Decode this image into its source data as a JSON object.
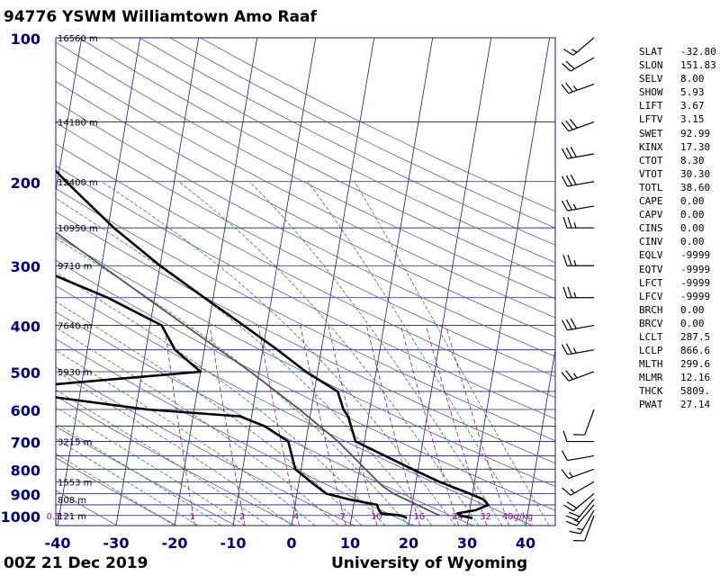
{
  "header": {
    "title": "94776 YSWM Williamtown Amo Raaf"
  },
  "footer": {
    "date": "00Z 21 Dec 2019",
    "source": "University of Wyoming"
  },
  "colors": {
    "grid": "#1a1a7a",
    "dry_adiabat": "#5a5aaf",
    "moist_adiabat": "#2e8b2e",
    "mixing_ratio": "#8b1a8b",
    "profile": "#000000",
    "parcel": "#555555",
    "axis_text": "#00007f"
  },
  "indices": [
    {
      "key": "SLAT",
      "value": "-32.80"
    },
    {
      "key": "SLON",
      "value": "151.83"
    },
    {
      "key": "SELV",
      "value": "8.00"
    },
    {
      "key": "SHOW",
      "value": "5.93"
    },
    {
      "key": "LIFT",
      "value": "3.67"
    },
    {
      "key": "LFTV",
      "value": "3.15"
    },
    {
      "key": "SWET",
      "value": "92.99"
    },
    {
      "key": "KINX",
      "value": "17.30"
    },
    {
      "key": "CTOT",
      "value": "8.30"
    },
    {
      "key": "VTOT",
      "value": "30.30"
    },
    {
      "key": "TOTL",
      "value": "38.60"
    },
    {
      "key": "CAPE",
      "value": "0.00"
    },
    {
      "key": "CAPV",
      "value": "0.00"
    },
    {
      "key": "CINS",
      "value": "0.00"
    },
    {
      "key": "CINV",
      "value": "0.00"
    },
    {
      "key": "EQLV",
      "value": "-9999"
    },
    {
      "key": "EQTV",
      "value": "-9999"
    },
    {
      "key": "LFCT",
      "value": "-9999"
    },
    {
      "key": "LFCV",
      "value": "-9999"
    },
    {
      "key": "BRCH",
      "value": "0.00"
    },
    {
      "key": "BRCV",
      "value": "0.00"
    },
    {
      "key": "LCLT",
      "value": "287.5"
    },
    {
      "key": "LCLP",
      "value": "866.6"
    },
    {
      "key": "MLTH",
      "value": "299.6"
    },
    {
      "key": "MLMR",
      "value": "12.16"
    },
    {
      "key": "THCK",
      "value": "5809."
    },
    {
      "key": "PWAT",
      "value": "27.14"
    }
  ],
  "chart_data": {
    "type": "line",
    "chart_kind": "skew-T log-P sounding",
    "x_ticks": [
      "-40",
      "-30",
      "-20",
      "-10",
      "0",
      "10",
      "20",
      "30",
      "40"
    ],
    "x_tick_values": [
      -40,
      -30,
      -20,
      -10,
      0,
      10,
      20,
      30,
      40
    ],
    "y_ticks": [
      "100",
      "200",
      "300",
      "400",
      "500",
      "600",
      "700",
      "800",
      "900",
      "1000"
    ],
    "y_tick_values": [
      100,
      200,
      300,
      400,
      500,
      600,
      700,
      800,
      900,
      1000
    ],
    "y_scale": "log",
    "ylim": [
      100,
      1050
    ],
    "xlim": [
      -40,
      45
    ],
    "height_labels": [
      {
        "p": 100,
        "label": "16560 m"
      },
      {
        "p": 150,
        "label": "14180 m"
      },
      {
        "p": 200,
        "label": "12400 m"
      },
      {
        "p": 250,
        "label": "10950 m"
      },
      {
        "p": 300,
        "label": "9710 m"
      },
      {
        "p": 400,
        "label": "7640 m"
      },
      {
        "p": 500,
        "label": "5930 m"
      },
      {
        "p": 700,
        "label": "3215 m"
      },
      {
        "p": 850,
        "label": "1553 m"
      },
      {
        "p": 925,
        "label": "808 m"
      },
      {
        "p": 1000,
        "label": "121 m"
      }
    ],
    "mixing_ratio_labels": [
      {
        "w": 0.1,
        "label": "0.1"
      },
      {
        "w": 1,
        "label": "1"
      },
      {
        "w": 2,
        "label": "2"
      },
      {
        "w": 4,
        "label": "4"
      },
      {
        "w": 7,
        "label": "7"
      },
      {
        "w": 10,
        "label": "10"
      },
      {
        "w": 16,
        "label": "16"
      },
      {
        "w": 24,
        "label": "24"
      },
      {
        "w": 32,
        "label": "32"
      },
      {
        "w": 40,
        "label": "40g/kg"
      }
    ],
    "series": [
      {
        "name": "TEMP",
        "points": [
          [
            1013,
            30.7
          ],
          [
            1000,
            28.5
          ],
          [
            990,
            28.0
          ],
          [
            975,
            31.0
          ],
          [
            950,
            33.0
          ],
          [
            925,
            32.0
          ],
          [
            900,
            29.5
          ],
          [
            850,
            24.0
          ],
          [
            800,
            19.0
          ],
          [
            700,
            8.5
          ],
          [
            620,
            6.5
          ],
          [
            600,
            5.5
          ],
          [
            550,
            4.0
          ],
          [
            500,
            -2.0
          ],
          [
            450,
            -7.5
          ],
          [
            400,
            -14.0
          ],
          [
            350,
            -21.5
          ],
          [
            300,
            -30.0
          ],
          [
            250,
            -39.0
          ],
          [
            200,
            -48.5
          ],
          [
            170,
            -55.0
          ],
          [
            150,
            -58.5
          ],
          [
            130,
            -61.5
          ],
          [
            115,
            -62.5
          ],
          [
            100,
            -57.0
          ]
        ]
      },
      {
        "name": "DWPT",
        "points": [
          [
            1013,
            19.5
          ],
          [
            1000,
            18.5
          ],
          [
            990,
            15.0
          ],
          [
            975,
            14.5
          ],
          [
            950,
            14.0
          ],
          [
            925,
            9.0
          ],
          [
            900,
            5.0
          ],
          [
            850,
            2.0
          ],
          [
            800,
            -1.0
          ],
          [
            700,
            -3.0
          ],
          [
            650,
            -7.5
          ],
          [
            620,
            -12.0
          ],
          [
            600,
            -28.0
          ],
          [
            560,
            -47.0
          ],
          [
            540,
            -51.0
          ],
          [
            500,
            -20.0
          ],
          [
            450,
            -25.0
          ],
          [
            400,
            -28.0
          ],
          [
            350,
            -38.0
          ],
          [
            300,
            -52.0
          ],
          [
            250,
            -57.0
          ],
          [
            200,
            -65.0
          ],
          [
            180,
            -72.0
          ],
          [
            160,
            -72.0
          ],
          [
            150,
            -70.0
          ],
          [
            130,
            -73.0
          ],
          [
            110,
            -76.0
          ],
          [
            100,
            -78.0
          ]
        ]
      },
      {
        "name": "PARCEL",
        "points": [
          [
            1000,
            25.0
          ],
          [
            900,
            16.5
          ],
          [
            866.6,
            14.3
          ],
          [
            800,
            11.0
          ],
          [
            700,
            5.5
          ],
          [
            600,
            -2.0
          ],
          [
            500,
            -11.5
          ],
          [
            400,
            -24.0
          ],
          [
            300,
            -40.0
          ],
          [
            250,
            -50.0
          ],
          [
            200,
            -61.0
          ],
          [
            150,
            -75.0
          ],
          [
            100,
            -92.0
          ]
        ]
      }
    ],
    "wind_barbs": [
      {
        "p": 1000,
        "dir": 200,
        "spd": 10
      },
      {
        "p": 975,
        "dir": 210,
        "spd": 15
      },
      {
        "p": 950,
        "dir": 220,
        "spd": 15
      },
      {
        "p": 925,
        "dir": 220,
        "spd": 20
      },
      {
        "p": 900,
        "dir": 230,
        "spd": 20
      },
      {
        "p": 850,
        "dir": 240,
        "spd": 15
      },
      {
        "p": 800,
        "dir": 250,
        "spd": 15
      },
      {
        "p": 750,
        "dir": 260,
        "spd": 10
      },
      {
        "p": 700,
        "dir": 270,
        "spd": 10
      },
      {
        "p": 600,
        "dir": 200,
        "spd": 10
      },
      {
        "p": 500,
        "dir": 250,
        "spd": 25
      },
      {
        "p": 450,
        "dir": 260,
        "spd": 25
      },
      {
        "p": 400,
        "dir": 260,
        "spd": 30
      },
      {
        "p": 350,
        "dir": 270,
        "spd": 25
      },
      {
        "p": 300,
        "dir": 270,
        "spd": 25
      },
      {
        "p": 250,
        "dir": 270,
        "spd": 25
      },
      {
        "p": 225,
        "dir": 260,
        "spd": 25
      },
      {
        "p": 200,
        "dir": 260,
        "spd": 30
      },
      {
        "p": 175,
        "dir": 260,
        "spd": 30
      },
      {
        "p": 150,
        "dir": 250,
        "spd": 30
      },
      {
        "p": 125,
        "dir": 250,
        "spd": 25
      },
      {
        "p": 110,
        "dir": 240,
        "spd": 20
      },
      {
        "p": 100,
        "dir": 230,
        "spd": 15
      }
    ]
  }
}
